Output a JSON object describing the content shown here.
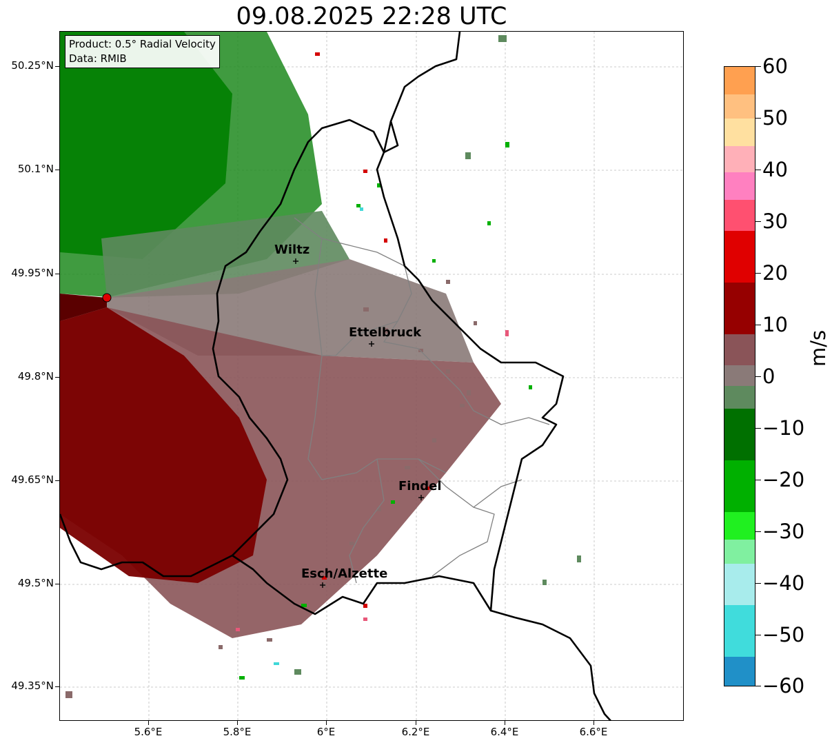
{
  "title": "09.08.2025 22:28 UTC",
  "info": {
    "product": "Product: 0.5° Radial Velocity",
    "data": "Data: RMIB"
  },
  "axes": {
    "lat_labels": [
      "50.25°N",
      "50.1°N",
      "49.95°N",
      "49.8°N",
      "49.65°N",
      "49.5°N",
      "49.35°N"
    ],
    "lon_labels": [
      "5.6°E",
      "5.8°E",
      "6°E",
      "6.2°E",
      "6.4°E",
      "6.6°E"
    ]
  },
  "cities": [
    {
      "name": "Wiltz"
    },
    {
      "name": "Ettelbruck"
    },
    {
      "name": "Findel"
    },
    {
      "name": "Esch/Alzette"
    }
  ],
  "colorbar": {
    "unit": "m/s",
    "tick_labels": [
      "60",
      "50",
      "40",
      "30",
      "20",
      "10",
      "0",
      "−10",
      "−20",
      "−30",
      "−40",
      "−50",
      "−60"
    ],
    "min": -60,
    "max": 60
  },
  "colors": {
    "radar_site": "#e00000",
    "border": "#000000",
    "admin_border": "#808080",
    "recede_dark": "#7a0000",
    "approach_green": "#00a000",
    "near_zero": "#8a6a6a"
  }
}
